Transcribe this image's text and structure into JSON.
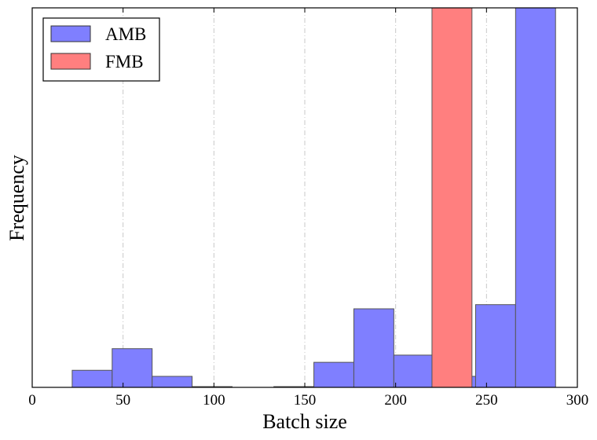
{
  "chart_data": {
    "type": "bar",
    "xlabel": "Batch size",
    "ylabel": "Frequency",
    "xlim": [
      0,
      300
    ],
    "ylim": [
      0,
      100
    ],
    "xticks": [
      "0",
      "50",
      "100",
      "150",
      "200",
      "250",
      "300"
    ],
    "grid": "vertical dash-dot",
    "legend_position": "top-left",
    "series": [
      {
        "name": "AMB",
        "color": "#7f7fff",
        "bins": [
          {
            "x0": 22,
            "x1": 44,
            "value": 4.5
          },
          {
            "x0": 44,
            "x1": 66,
            "value": 10.2
          },
          {
            "x0": 66,
            "x1": 88,
            "value": 2.9
          },
          {
            "x0": 88,
            "x1": 110,
            "value": 0.2
          },
          {
            "x0": 133,
            "x1": 155,
            "value": 0.2
          },
          {
            "x0": 155,
            "x1": 177,
            "value": 6.6
          },
          {
            "x0": 177,
            "x1": 199,
            "value": 20.7
          },
          {
            "x0": 199,
            "x1": 221,
            "value": 8.5
          },
          {
            "x0": 221,
            "x1": 244,
            "value": 2.9
          },
          {
            "x0": 244,
            "x1": 266,
            "value": 21.8
          },
          {
            "x0": 266,
            "x1": 288,
            "value": 100
          }
        ]
      },
      {
        "name": "FMB",
        "color": "#ff7f7f",
        "bins": [
          {
            "x0": 220,
            "x1": 242,
            "value": 100
          }
        ]
      }
    ]
  }
}
